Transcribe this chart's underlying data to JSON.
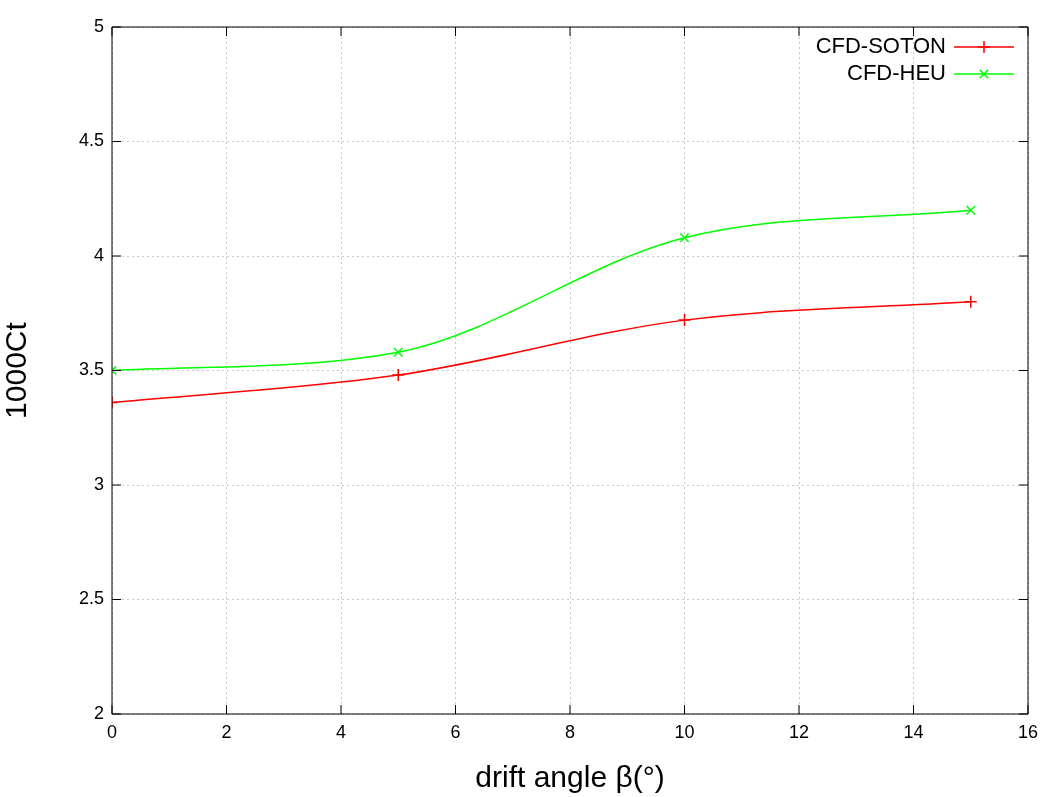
{
  "chart_data": {
    "type": "line",
    "xlabel": "drift angle β(°)",
    "ylabel": "1000Ct",
    "x": [
      0,
      5,
      10,
      15
    ],
    "series": [
      {
        "name": "CFD-SOTON",
        "color": "#ff0000",
        "values": [
          3.36,
          3.48,
          3.72,
          3.8
        ],
        "marker": "cross"
      },
      {
        "name": "CFD-HEU",
        "color": "#00ff00",
        "values": [
          3.5,
          3.58,
          4.08,
          4.2
        ],
        "marker": "x"
      }
    ],
    "xlim": [
      0,
      16
    ],
    "xticks": [
      0,
      2,
      4,
      6,
      8,
      10,
      12,
      14,
      16
    ],
    "ylim": [
      2,
      5
    ],
    "yticks": [
      2,
      2.5,
      3,
      3.5,
      4,
      4.5,
      5
    ],
    "grid": true,
    "legend": "top right",
    "line_style": "solid"
  }
}
